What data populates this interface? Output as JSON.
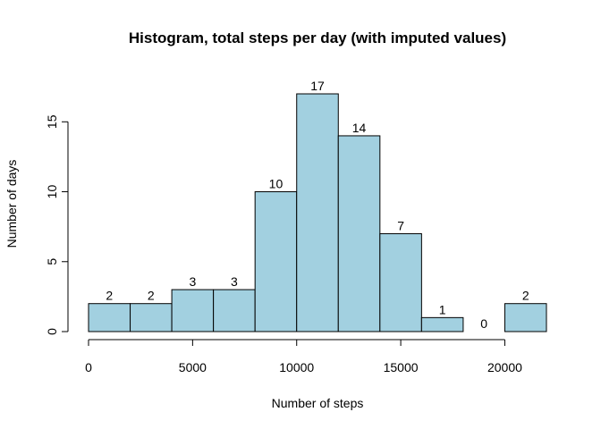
{
  "chart_data": {
    "type": "bar",
    "title": "Histogram, total steps per day (with imputed values)",
    "xlabel": "Number of steps",
    "ylabel": "Number of days",
    "bin_edges": [
      0,
      2000,
      4000,
      6000,
      8000,
      10000,
      12000,
      14000,
      16000,
      18000,
      20000,
      22000
    ],
    "values": [
      2,
      2,
      3,
      3,
      10,
      17,
      14,
      7,
      1,
      0,
      2
    ],
    "value_labels": [
      "2",
      "2",
      "3",
      "3",
      "10",
      "17",
      "14",
      "7",
      "1",
      "0",
      "2"
    ],
    "xlim": [
      0,
      22000
    ],
    "ylim": [
      0,
      17
    ],
    "x_ticks": [
      0,
      5000,
      10000,
      15000,
      20000
    ],
    "x_tick_labels": [
      "0",
      "5000",
      "10000",
      "15000",
      "20000"
    ],
    "y_ticks": [
      0,
      5,
      10,
      15
    ],
    "y_tick_labels": [
      "0",
      "5",
      "10",
      "15"
    ],
    "bar_color": "#a2d0e0",
    "bar_edge_color": "#000000",
    "grid": false,
    "legend": "none"
  }
}
